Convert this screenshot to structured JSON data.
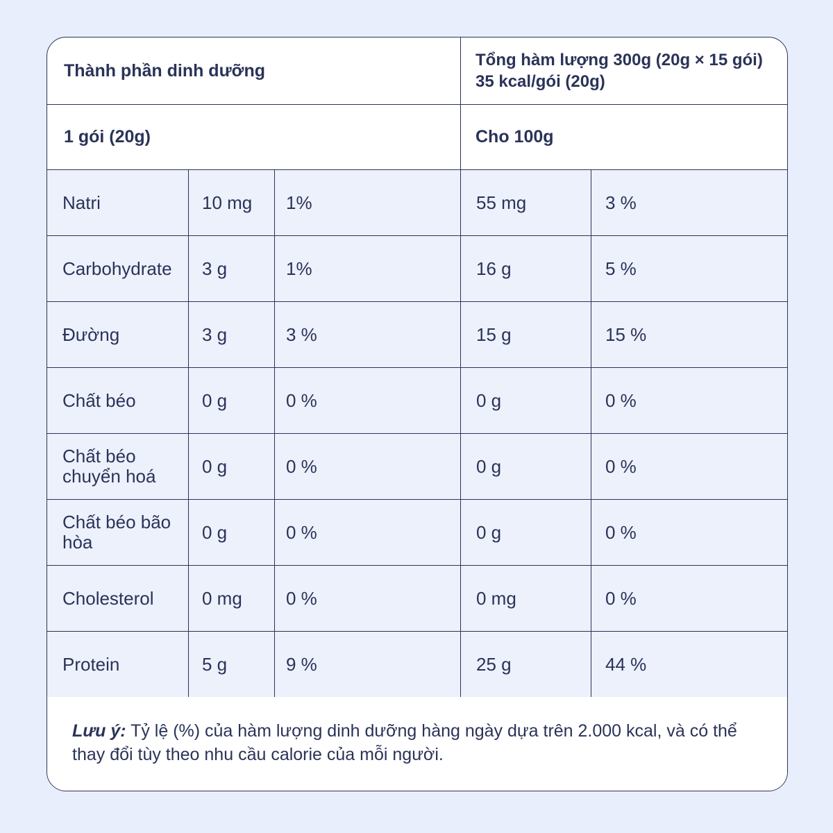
{
  "header": {
    "title": "Thành phần dinh dưỡng",
    "total_line1": "Tổng hàm lượng 300g (20g × 15 gói)",
    "total_line2": "35 kcal/gói (20g)"
  },
  "subheader": {
    "per_pack": "1 gói (20g)",
    "per_100g": "Cho 100g"
  },
  "rows": [
    {
      "name": "Natri",
      "pack_amount": "10 mg",
      "pack_pct": "1%",
      "amount_100g": "55 mg",
      "pct_100g": "3 %"
    },
    {
      "name": "Carbohydrate",
      "pack_amount": "3 g",
      "pack_pct": "1%",
      "amount_100g": "16 g",
      "pct_100g": "5 %"
    },
    {
      "name": "Đường",
      "pack_amount": "3 g",
      "pack_pct": "3 %",
      "amount_100g": "15 g",
      "pct_100g": "15 %"
    },
    {
      "name": "Chất béo",
      "pack_amount": "0 g",
      "pack_pct": "0 %",
      "amount_100g": "0 g",
      "pct_100g": "0 %"
    },
    {
      "name": "Chất béo chuyển hoá",
      "pack_amount": "0 g",
      "pack_pct": "0 %",
      "amount_100g": "0 g",
      "pct_100g": "0 %"
    },
    {
      "name": "Chất béo bão hòa",
      "pack_amount": "0 g",
      "pack_pct": "0 %",
      "amount_100g": "0 g",
      "pct_100g": "0 %"
    },
    {
      "name": "Cholesterol",
      "pack_amount": "0 mg",
      "pack_pct": "0 %",
      "amount_100g": "0 mg",
      "pct_100g": "0 %"
    },
    {
      "name": "Protein",
      "pack_amount": "5 g",
      "pack_pct": "9 %",
      "amount_100g": "25 g",
      "pct_100g": "44 %"
    }
  ],
  "note": {
    "label": "Lưu ý:",
    "text": " Tỷ lệ (%) của hàm lượng dinh dưỡng hàng ngày dựa trên 2.000 kcal, và có thể thay đổi tùy theo nhu cầu calorie của mỗi người."
  }
}
